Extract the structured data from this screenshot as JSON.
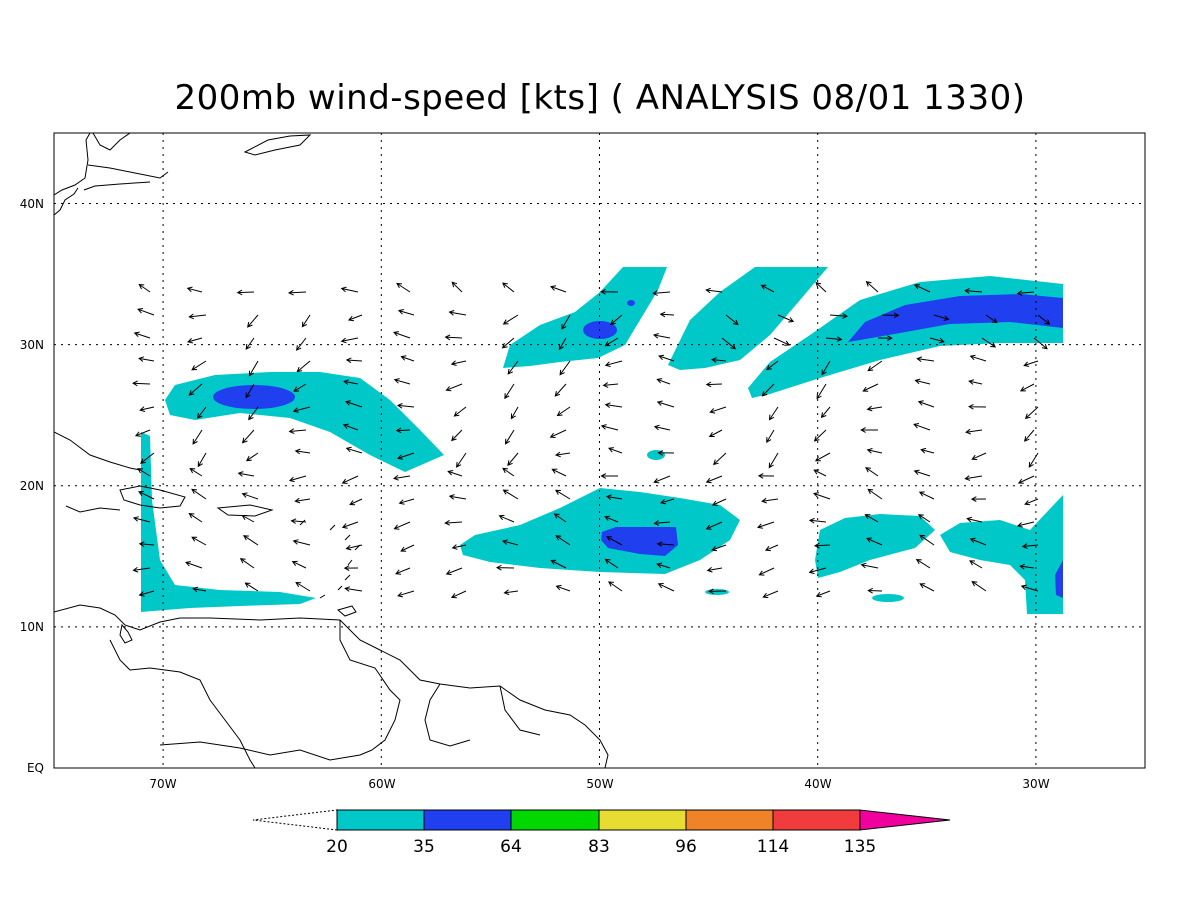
{
  "title": "200mb wind-speed [kts] ( ANALYSIS 08/01 1330)",
  "map": {
    "lon_range": [
      -75,
      -25
    ],
    "lat_range": [
      0,
      45
    ],
    "lat_labels": [
      "40N",
      "30N",
      "20N",
      "10N",
      "EQ"
    ],
    "lat_values": [
      40,
      30,
      20,
      10,
      0
    ],
    "lon_labels": [
      "70W",
      "60W",
      "50W",
      "40W",
      "30W"
    ],
    "lon_values": [
      -70,
      -60,
      -50,
      -40,
      -30
    ],
    "gridlines": "dotted"
  },
  "colorbar": {
    "thresholds": [
      "20",
      "35",
      "64",
      "83",
      "96",
      "114",
      "135"
    ],
    "colors": [
      "#00c8c8",
      "#2040f0",
      "#00d800",
      "#e6dc32",
      "#f08228",
      "#f03c3c",
      "#f0009c"
    ]
  },
  "colors": {
    "contour_20_35": "#00c8c8",
    "contour_35_64": "#2040f0",
    "coastline": "#000000",
    "wind_vector": "#000000"
  }
}
